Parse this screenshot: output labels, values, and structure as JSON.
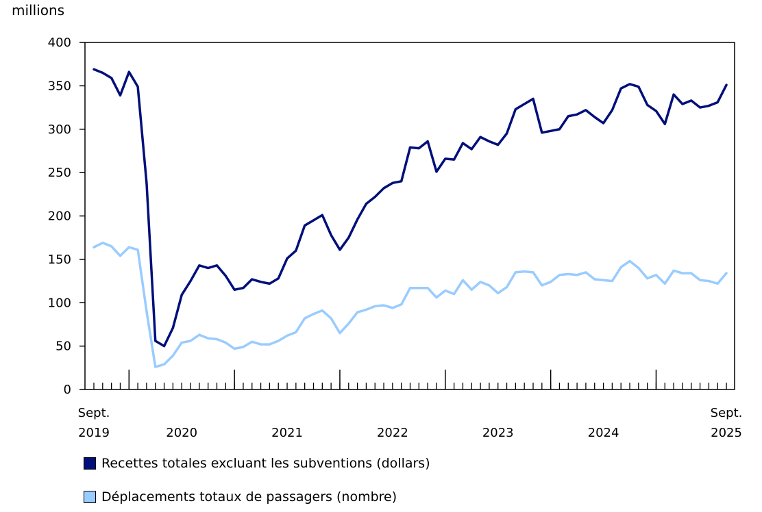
{
  "chart_data": {
    "type": "line",
    "unit_label": "millions",
    "ylim": [
      0,
      400
    ],
    "yticks": [
      "0",
      "50",
      "100",
      "150",
      "200",
      "250",
      "300",
      "350",
      "400"
    ],
    "x_start": "Sept. 2019",
    "x_end": "Sept. 2025",
    "x_labels": [
      {
        "month_index": 0,
        "line1": "Sept.",
        "line2": "2019"
      },
      {
        "month_index": 10,
        "line1": "",
        "line2": "2020"
      },
      {
        "month_index": 22,
        "line1": "",
        "line2": "2021"
      },
      {
        "month_index": 34,
        "line1": "",
        "line2": "2022"
      },
      {
        "month_index": 46,
        "line1": "",
        "line2": "2023"
      },
      {
        "month_index": 58,
        "line1": "",
        "line2": "2024"
      },
      {
        "month_index": 72,
        "line1": "Sept.",
        "line2": "2025"
      }
    ],
    "year_boundaries": [
      4,
      16,
      28,
      40,
      52,
      64
    ],
    "series": [
      {
        "name": "Recettes totales excluant les subventions (dollars)",
        "color": "#000f7a",
        "values": [
          369,
          365,
          359,
          339,
          366,
          349,
          238,
          56,
          50,
          71,
          109,
          125,
          143,
          140,
          143,
          131,
          115,
          117,
          127,
          124,
          122,
          128,
          151,
          160,
          189,
          195,
          201,
          178,
          161,
          175,
          196,
          214,
          222,
          232,
          238,
          240,
          279,
          278,
          286,
          251,
          266,
          265,
          284,
          277,
          291,
          286,
          282,
          295,
          323,
          329,
          335,
          296,
          298,
          300,
          315,
          317,
          322,
          314,
          307,
          322,
          347,
          352,
          349,
          328,
          321,
          306,
          340,
          329,
          333,
          325,
          327,
          331,
          351
        ]
      },
      {
        "name": "Déplacements totaux de passagers (nombre)",
        "color": "#99ccff",
        "values": [
          164,
          169,
          165,
          154,
          164,
          161,
          90,
          26,
          29,
          39,
          54,
          56,
          63,
          59,
          58,
          54,
          47,
          49,
          55,
          52,
          52,
          56,
          62,
          66,
          82,
          87,
          91,
          82,
          65,
          76,
          89,
          92,
          96,
          97,
          94,
          98,
          117,
          117,
          117,
          106,
          114,
          110,
          126,
          115,
          124,
          120,
          111,
          118,
          135,
          136,
          135,
          120,
          124,
          132,
          133,
          132,
          135,
          127,
          126,
          125,
          141,
          148,
          140,
          128,
          132,
          122,
          137,
          134,
          134,
          126,
          125,
          122,
          134
        ]
      }
    ]
  }
}
